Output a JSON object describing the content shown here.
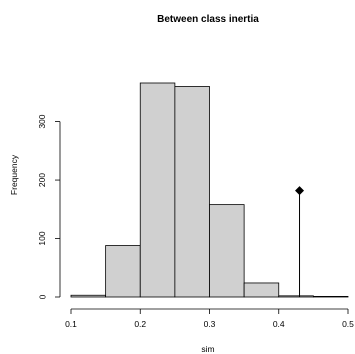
{
  "chart_data": {
    "type": "bar",
    "title": "Between class inertia",
    "xlabel": "sim",
    "ylabel": "Frequency",
    "bins": [
      {
        "from": 0.1,
        "to": 0.15,
        "count": 3
      },
      {
        "from": 0.15,
        "to": 0.2,
        "count": 88
      },
      {
        "from": 0.2,
        "to": 0.25,
        "count": 366
      },
      {
        "from": 0.25,
        "to": 0.3,
        "count": 360
      },
      {
        "from": 0.3,
        "to": 0.35,
        "count": 158
      },
      {
        "from": 0.35,
        "to": 0.4,
        "count": 24
      },
      {
        "from": 0.4,
        "to": 0.45,
        "count": 2
      },
      {
        "from": 0.45,
        "to": 0.5,
        "count": 1
      }
    ],
    "xlim": [
      0.1,
      0.5
    ],
    "ylim": [
      0,
      366
    ],
    "x_ticks": [
      "0.1",
      "0.2",
      "0.3",
      "0.4",
      "0.5"
    ],
    "y_ticks": [
      "0",
      "100",
      "200",
      "300"
    ],
    "observed": {
      "x": 0.43,
      "height": 182
    },
    "colors": {
      "bar_fill": "#d0d0d0",
      "outline": "#000000"
    }
  }
}
